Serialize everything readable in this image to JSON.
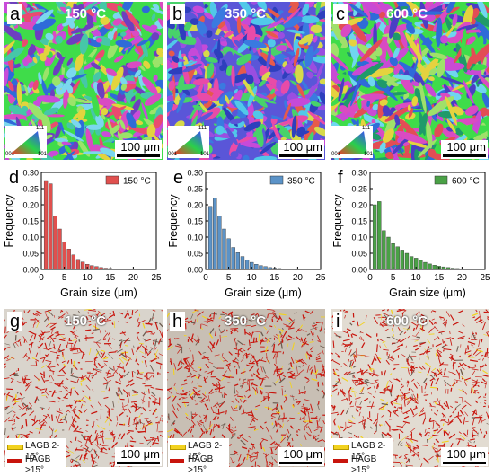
{
  "figure": {
    "ebsd_maps": [
      {
        "letter": "a",
        "temperature": "150 °C",
        "scale": "100 μm",
        "palette": [
          "#3fdc4a",
          "#c84cd9",
          "#2f6bd8",
          "#7bd7ee",
          "#e2d43e",
          "#e94b6f",
          "#6d3fbf",
          "#46c7a8",
          "#9be36a",
          "#d94bc2"
        ]
      },
      {
        "letter": "b",
        "temperature": "350 °C",
        "scale": "100 μm",
        "palette": [
          "#5a56d8",
          "#c64ad8",
          "#3a7ae0",
          "#e84ba8",
          "#51c8e9",
          "#48d26a",
          "#9a4ee0",
          "#e65a4b",
          "#2e3fbd",
          "#d7d94b"
        ]
      },
      {
        "letter": "c",
        "temperature": "600 °C",
        "scale": "100 μm",
        "palette": [
          "#3fdc4a",
          "#2f6bd8",
          "#c94ad4",
          "#6fd6ef",
          "#e24d55",
          "#1f9a6a",
          "#e5d23f",
          "#4a3fc4",
          "#9fe06a",
          "#d94bc2"
        ]
      }
    ],
    "ipf_legend": {
      "labels": [
        "111",
        "001",
        "101"
      ]
    },
    "boundary_maps": [
      {
        "letter": "g",
        "temperature": "150 °C",
        "scale": "100 μm",
        "tint": "#d9d4cc"
      },
      {
        "letter": "h",
        "temperature": "350 °C",
        "scale": "100 μm",
        "tint": "#c8bfb4"
      },
      {
        "letter": "i",
        "temperature": "600 °C",
        "scale": "100 μm",
        "tint": "#e2dcd2"
      }
    ],
    "boundary_legend": {
      "items": [
        {
          "label": "LAGB 2-15°",
          "color": "#f2d21f"
        },
        {
          "label": "HAGB >15°",
          "color": "#c8140c"
        }
      ]
    }
  },
  "chart_data": [
    {
      "type": "bar",
      "panel": "d",
      "legend": "150 °C",
      "color": "#e0504e",
      "legend_pos": "top-right",
      "xlabel": "Grain size (μm)",
      "ylabel": "Frequency",
      "xlim": [
        0,
        25
      ],
      "ylim": [
        0,
        0.3
      ],
      "xticks": [
        "0",
        "5",
        "10",
        "15",
        "20",
        "25"
      ],
      "yticks": [
        "0.00",
        "0.05",
        "0.10",
        "0.15",
        "0.20",
        "0.25",
        "0.30"
      ],
      "x": [
        1,
        2,
        3,
        4,
        5,
        6,
        7,
        8,
        9,
        10,
        11,
        12,
        13,
        14,
        15,
        16,
        17,
        18,
        19,
        20
      ],
      "values": [
        0.275,
        0.265,
        0.165,
        0.125,
        0.085,
        0.063,
        0.045,
        0.031,
        0.023,
        0.016,
        0.012,
        0.009,
        0.006,
        0.004,
        0.003,
        0.002,
        0.0015,
        0.001,
        0.0008,
        0.0005
      ]
    },
    {
      "type": "bar",
      "panel": "e",
      "legend": "350 °C",
      "color": "#5b93c8",
      "legend_pos": "top-right",
      "xlabel": "Grain size (μm)",
      "ylabel": "Frequency",
      "xlim": [
        0,
        25
      ],
      "ylim": [
        0,
        0.3
      ],
      "xticks": [
        "0",
        "5",
        "10",
        "15",
        "20",
        "25"
      ],
      "yticks": [
        "0.00",
        "0.05",
        "0.10",
        "0.15",
        "0.20",
        "0.25",
        "0.30"
      ],
      "x": [
        1,
        2,
        3,
        4,
        5,
        6,
        7,
        8,
        9,
        10,
        11,
        12,
        13,
        14,
        15,
        16,
        17,
        18,
        19,
        20
      ],
      "values": [
        0.195,
        0.22,
        0.165,
        0.125,
        0.095,
        0.068,
        0.052,
        0.04,
        0.03,
        0.022,
        0.016,
        0.012,
        0.009,
        0.006,
        0.004,
        0.003,
        0.002,
        0.0015,
        0.001,
        0.0008
      ]
    },
    {
      "type": "bar",
      "panel": "f",
      "legend": "600 °C",
      "color": "#4aa146",
      "legend_pos": "top-right",
      "xlabel": "Grain size (μm)",
      "ylabel": "Frequency",
      "xlim": [
        0,
        25
      ],
      "ylim": [
        0,
        0.3
      ],
      "xticks": [
        "0",
        "5",
        "10",
        "15",
        "20",
        "25"
      ],
      "yticks": [
        "0.00",
        "0.05",
        "0.10",
        "0.15",
        "0.20",
        "0.25",
        "0.30"
      ],
      "x": [
        1,
        2,
        3,
        4,
        5,
        6,
        7,
        8,
        9,
        10,
        11,
        12,
        13,
        14,
        15,
        16,
        17,
        18,
        19,
        20,
        21,
        22
      ],
      "values": [
        0.2,
        0.21,
        0.12,
        0.1,
        0.08,
        0.07,
        0.06,
        0.05,
        0.04,
        0.035,
        0.028,
        0.022,
        0.017,
        0.013,
        0.01,
        0.008,
        0.006,
        0.004,
        0.003,
        0.002,
        0.0015,
        0.001
      ]
    }
  ]
}
